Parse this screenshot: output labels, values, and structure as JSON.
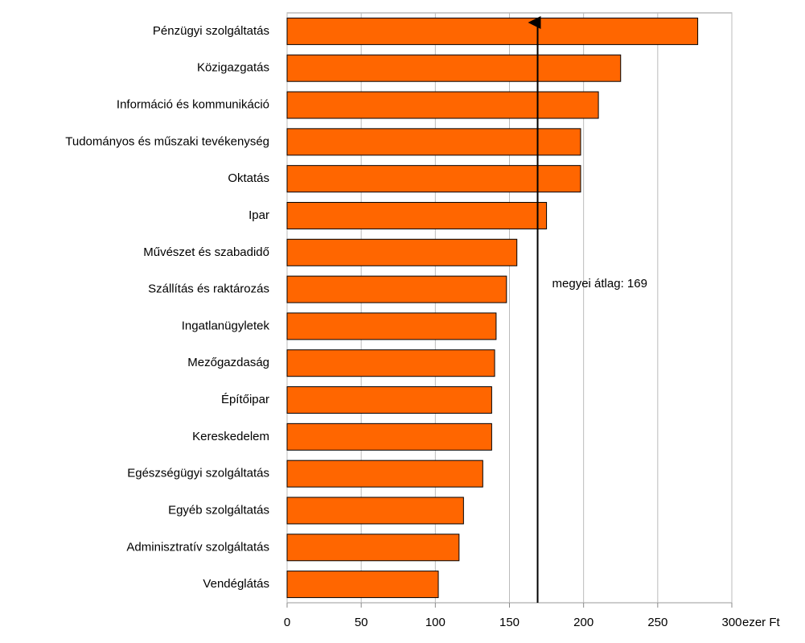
{
  "chart_data": {
    "type": "bar",
    "orientation": "horizontal",
    "categories": [
      "Pénzügyi szolgáltatás",
      "Közigazgatás",
      "Információ és kommunikáció",
      "Tudományos és műszaki tevékenység",
      "Oktatás",
      "Ipar",
      "Művészet és szabadidő",
      "Szállítás és raktározás",
      "Ingatlanügyletek",
      "Mezőgazdaság",
      "Építőipar",
      "Kereskedelem",
      "Egészségügyi szolgáltatás",
      "Egyéb szolgáltatás",
      "Adminisztratív szolgáltatás",
      "Vendéglátás"
    ],
    "values": [
      277,
      225,
      210,
      198,
      198,
      175,
      155,
      148,
      141,
      140,
      138,
      138,
      132,
      119,
      116,
      102
    ],
    "color": "#ff6600",
    "xlim": [
      0,
      300
    ],
    "xticks": [
      0,
      50,
      100,
      150,
      200,
      250,
      300
    ],
    "x_unit": "ezer Ft",
    "grid": true,
    "average": {
      "value": 169,
      "label": "megyei átlag: 169"
    }
  }
}
